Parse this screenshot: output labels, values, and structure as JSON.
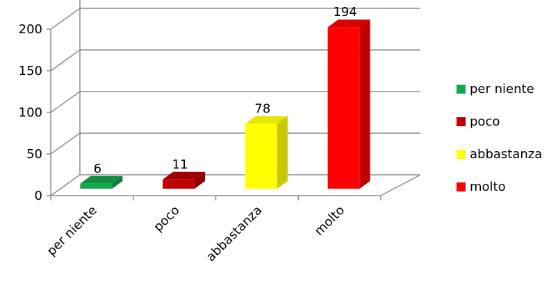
{
  "chart_data": {
    "type": "bar",
    "categories": [
      "per niente",
      "poco",
      "abbastanza",
      "molto"
    ],
    "values": [
      6,
      11,
      78,
      194
    ],
    "colors": [
      "#14a84b",
      "#c00000",
      "#ffff00",
      "#ff0000"
    ],
    "side_colors": [
      "#0d7a36",
      "#8b0000",
      "#c8c800",
      "#c00000"
    ],
    "top_colors": [
      "#0f8f40",
      "#a00000",
      "#e6e600",
      "#d80000"
    ],
    "ylim": [
      0,
      200
    ],
    "yticks": [
      0,
      50,
      100,
      150,
      200
    ],
    "ytick_labels": [
      "0",
      "50",
      "100",
      "150",
      "200"
    ],
    "data_labels": [
      "6",
      "11",
      "78",
      "194"
    ],
    "legend": {
      "position": "right",
      "entries": [
        "per niente",
        "poco",
        "abbastanza",
        "molto"
      ]
    },
    "grid": true,
    "style": "3d-column"
  }
}
